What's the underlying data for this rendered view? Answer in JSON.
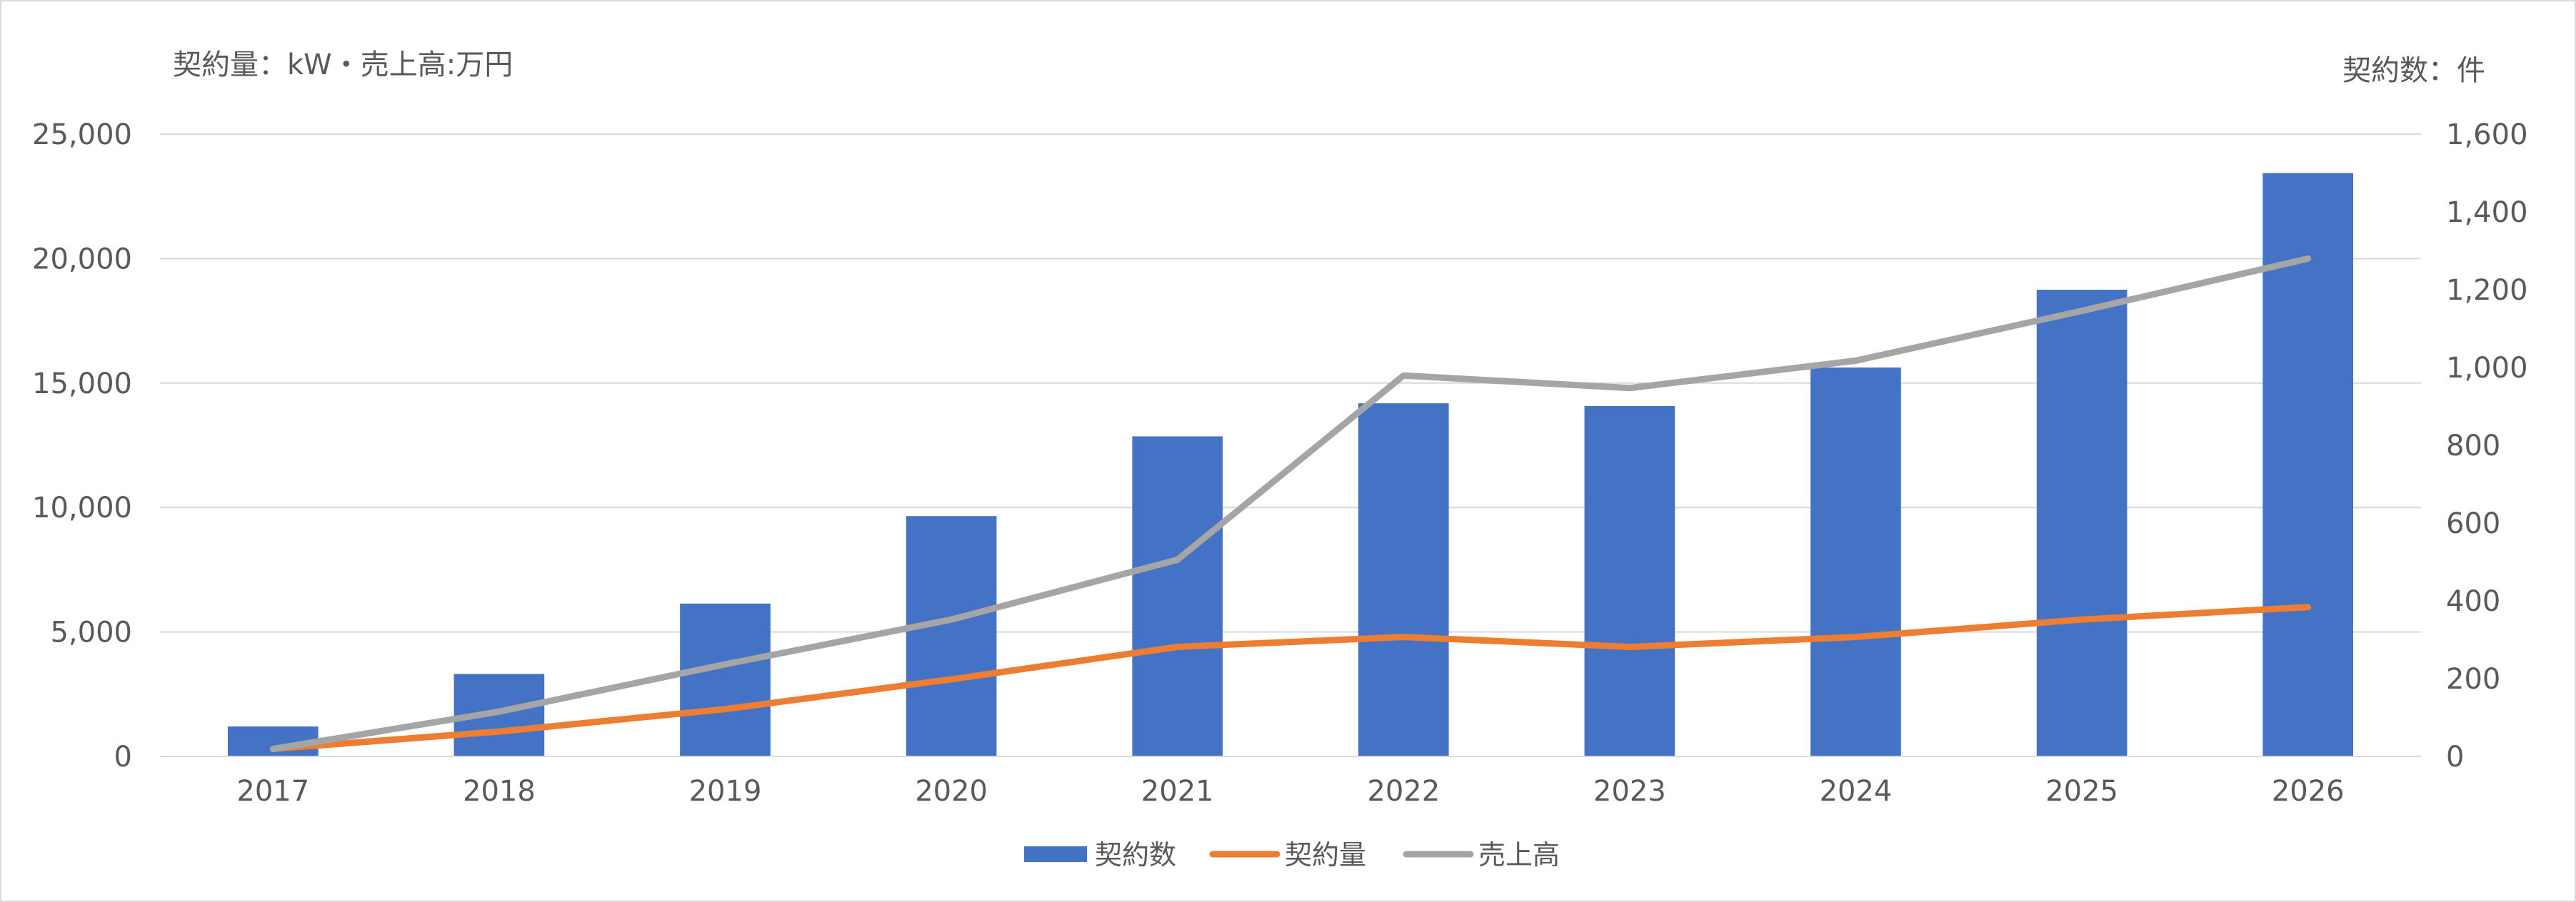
{
  "chart_data": {
    "type": "bar",
    "categories": [
      "2017",
      "2018",
      "2019",
      "2020",
      "2021",
      "2022",
      "2023",
      "2024",
      "2025",
      "2026"
    ],
    "left_axis_title": "契約量：kW・売上高:万円",
    "right_axis_title": "契約数：件",
    "left_ylim": [
      0,
      25000
    ],
    "left_ticks": [
      0,
      5000,
      10000,
      15000,
      20000,
      25000
    ],
    "left_tick_labels": [
      "0",
      "5,000",
      "10,000",
      "15,000",
      "20,000",
      "25,000"
    ],
    "right_ylim": [
      0,
      1600
    ],
    "right_ticks": [
      0,
      200,
      400,
      600,
      800,
      1000,
      1200,
      1400,
      1600
    ],
    "right_tick_labels": [
      "0",
      "200",
      "400",
      "600",
      "800",
      "1,000",
      "1,200",
      "1,400",
      "1,600"
    ],
    "grid": true,
    "legend_position": "bottom",
    "series": [
      {
        "name": "契約数",
        "kind": "bar",
        "axis": "right",
        "color": "#4472c4",
        "values": [
          77,
          212,
          393,
          618,
          823,
          908,
          901,
          1000,
          1200,
          1500
        ]
      },
      {
        "name": "契約量",
        "kind": "line",
        "axis": "left",
        "color": "#ed7d31",
        "values": [
          300,
          1000,
          1900,
          3100,
          4400,
          4800,
          4400,
          4800,
          5500,
          6000
        ]
      },
      {
        "name": "売上高",
        "kind": "line",
        "axis": "left",
        "color": "#a5a5a5",
        "values": [
          300,
          1800,
          3700,
          5500,
          7900,
          15300,
          14800,
          15900,
          17900,
          20000
        ]
      }
    ]
  }
}
